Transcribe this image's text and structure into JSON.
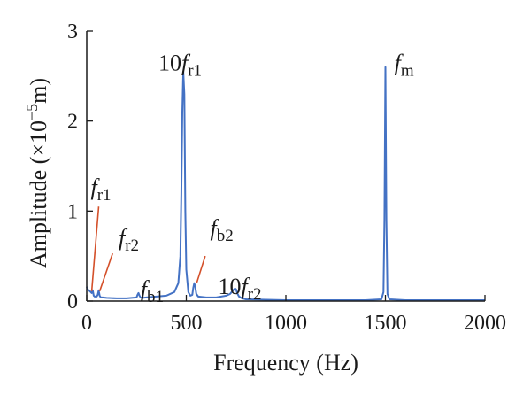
{
  "chart_data": {
    "type": "line",
    "xlabel": "Frequency (Hz)",
    "ylabel": {
      "prefix": "Amplitude (×10",
      "exp": "−5",
      "suffix": "m)"
    },
    "xlim": [
      0,
      2000
    ],
    "ylim": [
      0,
      3
    ],
    "xticks": [
      0,
      500,
      1000,
      1500,
      2000
    ],
    "yticks": [
      0,
      1,
      2,
      3
    ],
    "grid": false,
    "colors": {
      "series": "#4472c4",
      "annotation_line": "#d4502a",
      "axes": "#1a1a1a"
    },
    "series": [
      {
        "x": [
          0,
          5,
          10,
          20,
          25,
          30,
          35,
          40,
          50,
          55,
          60,
          65,
          70,
          80,
          100,
          150,
          200,
          250,
          255,
          260,
          265,
          270,
          280,
          300,
          350,
          400,
          440,
          460,
          470,
          475,
          480,
          485,
          490,
          495,
          500,
          510,
          520,
          530,
          535,
          540,
          545,
          550,
          560,
          600,
          650,
          700,
          720,
          735,
          745,
          750,
          755,
          765,
          780,
          800,
          900,
          1000,
          1200,
          1400,
          1480,
          1490,
          1495,
          1500,
          1505,
          1510,
          1520,
          1600,
          1800,
          2000
        ],
        "y": [
          0.16,
          0.13,
          0.12,
          0.1,
          0.09,
          0.12,
          0.06,
          0.05,
          0.05,
          0.07,
          0.12,
          0.06,
          0.04,
          0.04,
          0.035,
          0.03,
          0.03,
          0.04,
          0.07,
          0.09,
          0.06,
          0.04,
          0.035,
          0.04,
          0.05,
          0.06,
          0.1,
          0.2,
          0.5,
          1.2,
          2.1,
          2.55,
          2.3,
          1.0,
          0.35,
          0.1,
          0.06,
          0.07,
          0.15,
          0.2,
          0.16,
          0.08,
          0.05,
          0.04,
          0.04,
          0.06,
          0.08,
          0.12,
          0.14,
          0.13,
          0.09,
          0.05,
          0.03,
          0.02,
          0.015,
          0.01,
          0.01,
          0.01,
          0.02,
          0.1,
          0.9,
          2.6,
          0.9,
          0.08,
          0.02,
          0.01,
          0.01,
          0.01
        ]
      }
    ],
    "annotations": [
      {
        "main": "f",
        "sub": "r1",
        "label_x": 20,
        "label_y": 1.18,
        "line_from": [
          60,
          1.05
        ],
        "line_to": [
          25,
          0.11
        ]
      },
      {
        "main": "f",
        "sub": "r2",
        "label_x": 160,
        "label_y": 0.62,
        "line_from": [
          130,
          0.53
        ],
        "line_to": [
          65,
          0.11
        ]
      },
      {
        "main": "f",
        "sub": "b1",
        "label_x": 270,
        "label_y": 0.05
      },
      {
        "main": "f",
        "prefix": "10",
        "sub": "r1",
        "label_x": 360,
        "label_y": 2.56
      },
      {
        "main": "f",
        "sub": "b2",
        "label_x": 620,
        "label_y": 0.73,
        "line_from": [
          595,
          0.5
        ],
        "line_to": [
          552,
          0.2
        ]
      },
      {
        "main": "f",
        "prefix": "10",
        "sub": "r2",
        "label_x": 660,
        "label_y": 0.08
      },
      {
        "main": "f",
        "sub": "m",
        "label_x": 1545,
        "label_y": 2.56
      }
    ]
  }
}
